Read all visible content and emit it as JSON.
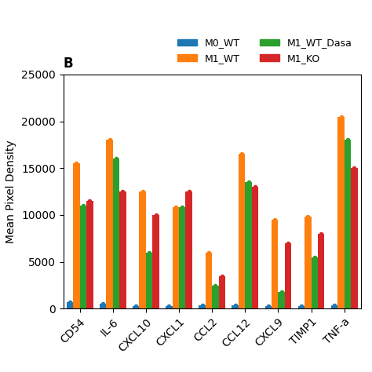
{
  "chart_data": {
    "type": "bar",
    "title": "B",
    "ylabel": "Mean Pixel Density",
    "categories": [
      "CD54",
      "IL-6",
      "CXCL10",
      "CXCL1",
      "CCL2",
      "CCL12",
      "CXCL9",
      "TIMP1",
      "TNF-a"
    ],
    "series": [
      {
        "name": "M0_WT",
        "values": [
          700,
          500,
          300,
          250,
          400,
          350,
          300,
          300,
          350
        ]
      },
      {
        "name": "M1_WT",
        "values": [
          15500,
          18000,
          12500,
          10800,
          6000,
          16500,
          9500,
          9800,
          20500
        ]
      },
      {
        "name": "M1_WT_Dasa",
        "values": [
          11000,
          16000,
          6000,
          10800,
          2500,
          13500,
          1800,
          5500,
          18000
        ]
      },
      {
        "name": "M1_KO",
        "values": [
          11500,
          12500,
          10000,
          12500,
          3500,
          13000,
          7000,
          8000,
          15000
        ]
      }
    ],
    "ylim": [
      0,
      25000
    ],
    "yticks": [
      0,
      5000,
      10000,
      15000,
      20000,
      25000
    ],
    "legend": "upper right",
    "marker": "o",
    "grid": false
  }
}
